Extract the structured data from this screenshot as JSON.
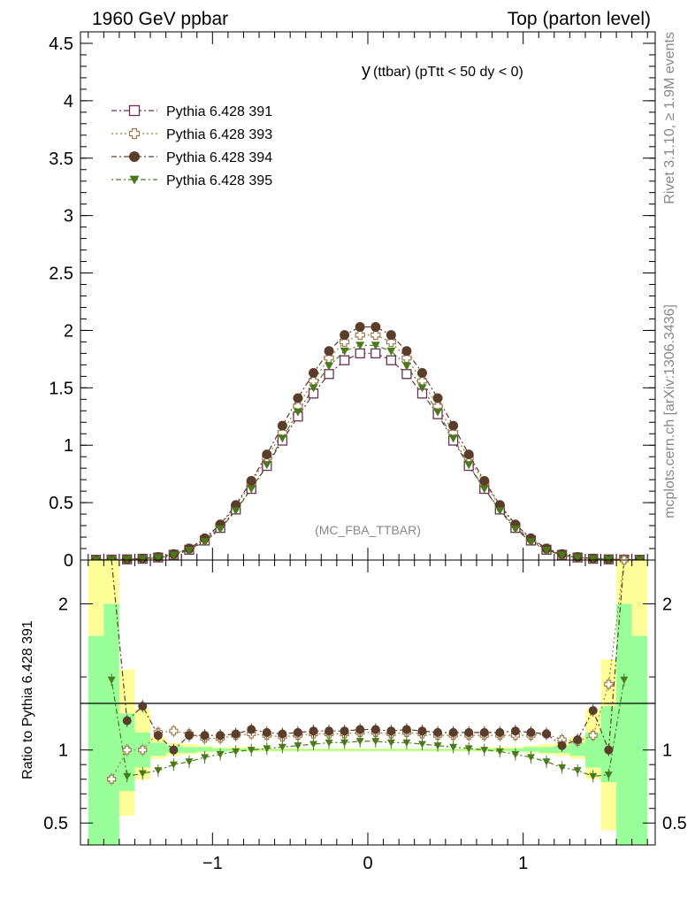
{
  "header": {
    "left": "1960 GeV ppbar",
    "right": "Top (parton level)"
  },
  "side": {
    "rivet": "Rivet 3.1.10, ≥ 1.9M events",
    "mcplots": "mcplots.cern.ch [arXiv:1306.3436]"
  },
  "main": {
    "title_main": "y",
    "title_sub": "(ttbar) (pTtt < 50 dy < 0)",
    "watermark": "(MC_FBA_TTBAR)"
  },
  "ratio": {
    "ylabel": "Ratio to Pythia 6.428 391"
  },
  "chart_data": [
    {
      "type": "line",
      "panel": "main",
      "xlim": [
        -1.85,
        1.85
      ],
      "ylim": [
        0,
        4.6
      ],
      "yticks": [
        0,
        0.5,
        1,
        1.5,
        2,
        2.5,
        3,
        3.5,
        4,
        4.5
      ],
      "ytick_labels": [
        "0",
        "0.5",
        "1",
        "1.5",
        "2",
        "2.5",
        "3",
        "3.5",
        "4",
        "4.5"
      ],
      "x": [
        -1.75,
        -1.65,
        -1.55,
        -1.45,
        -1.35,
        -1.25,
        -1.15,
        -1.05,
        -0.95,
        -0.85,
        -0.75,
        -0.65,
        -0.55,
        -0.45,
        -0.35,
        -0.25,
        -0.15,
        -0.05,
        0.05,
        0.15,
        0.25,
        0.35,
        0.45,
        0.55,
        0.65,
        0.75,
        0.85,
        0.95,
        1.05,
        1.15,
        1.25,
        1.35,
        1.45,
        1.55,
        1.65,
        1.75
      ],
      "series": [
        {
          "name": "Pythia 6.428 391",
          "color": "#6b2f4f",
          "marker": "open-square",
          "values": [
            0.003,
            0.004,
            0.006,
            0.011,
            0.022,
            0.045,
            0.09,
            0.17,
            0.28,
            0.44,
            0.62,
            0.82,
            1.04,
            1.25,
            1.45,
            1.62,
            1.74,
            1.8,
            1.8,
            1.74,
            1.62,
            1.45,
            1.27,
            1.04,
            0.82,
            0.62,
            0.44,
            0.28,
            0.17,
            0.09,
            0.045,
            0.022,
            0.011,
            0.006,
            0.004,
            0.003
          ]
        },
        {
          "name": "Pythia 6.428 393",
          "color": "#a07a4a",
          "marker": "open-cross",
          "values": [
            0.003,
            0.004,
            0.007,
            0.012,
            0.025,
            0.05,
            0.1,
            0.18,
            0.3,
            0.47,
            0.67,
            0.89,
            1.11,
            1.34,
            1.56,
            1.76,
            1.9,
            1.96,
            1.96,
            1.9,
            1.76,
            1.56,
            1.34,
            1.11,
            0.89,
            0.67,
            0.47,
            0.3,
            0.18,
            0.1,
            0.05,
            0.025,
            0.012,
            0.007,
            0.004,
            0.003
          ]
        },
        {
          "name": "Pythia 6.428 394",
          "color": "#5a3d2b",
          "marker": "filled-circle",
          "values": [
            0.003,
            0.004,
            0.007,
            0.013,
            0.026,
            0.052,
            0.1,
            0.19,
            0.31,
            0.48,
            0.69,
            0.92,
            1.17,
            1.41,
            1.63,
            1.82,
            1.96,
            2.03,
            2.03,
            1.96,
            1.82,
            1.63,
            1.41,
            1.17,
            0.92,
            0.69,
            0.48,
            0.31,
            0.19,
            0.1,
            0.052,
            0.026,
            0.013,
            0.007,
            0.004,
            0.003
          ]
        },
        {
          "name": "Pythia 6.428 395",
          "color": "#4a7a1c",
          "marker": "filled-triangle-down",
          "values": [
            0.003,
            0.004,
            0.006,
            0.01,
            0.02,
            0.042,
            0.085,
            0.16,
            0.27,
            0.43,
            0.62,
            0.83,
            1.06,
            1.29,
            1.5,
            1.69,
            1.82,
            1.87,
            1.87,
            1.82,
            1.69,
            1.5,
            1.29,
            1.06,
            0.83,
            0.62,
            0.43,
            0.27,
            0.16,
            0.085,
            0.042,
            0.02,
            0.01,
            0.006,
            0.004,
            0.003
          ]
        }
      ],
      "legend": "top-left"
    },
    {
      "type": "line",
      "panel": "ratio",
      "xlim": [
        -1.85,
        1.85
      ],
      "ylim": [
        0.35,
        2.3
      ],
      "yticks": [
        0.5,
        1,
        2
      ],
      "ytick_labels": [
        "0.5",
        "1",
        "2"
      ],
      "xticks": [
        -1,
        0,
        1
      ],
      "xtick_labels": [
        "−1",
        "0",
        "1"
      ],
      "x": [
        -1.75,
        -1.65,
        -1.55,
        -1.45,
        -1.35,
        -1.25,
        -1.15,
        -1.05,
        -0.95,
        -0.85,
        -0.75,
        -0.65,
        -0.55,
        -0.45,
        -0.35,
        -0.25,
        -0.15,
        -0.05,
        0.05,
        0.15,
        0.25,
        0.35,
        0.45,
        0.55,
        0.65,
        0.75,
        0.85,
        0.95,
        1.05,
        1.15,
        1.25,
        1.35,
        1.45,
        1.55,
        1.65,
        1.75
      ],
      "band_yellow": [
        [
          0.35,
          2.3
        ],
        [
          0.35,
          2.3
        ],
        [
          0.55,
          1.55
        ],
        [
          0.8,
          1.28
        ],
        [
          0.94,
          1.09
        ],
        [
          0.96,
          1.05
        ],
        [
          0.97,
          1.04
        ],
        [
          0.98,
          1.03
        ],
        [
          0.99,
          1.02
        ],
        [
          0.99,
          1.02
        ],
        [
          0.99,
          1.02
        ],
        [
          0.99,
          1.01
        ],
        [
          0.99,
          1.01
        ],
        [
          0.99,
          1.01
        ],
        [
          0.99,
          1.01
        ],
        [
          0.99,
          1.01
        ],
        [
          0.99,
          1.01
        ],
        [
          0.99,
          1.01
        ],
        [
          0.99,
          1.01
        ],
        [
          0.99,
          1.01
        ],
        [
          0.99,
          1.01
        ],
        [
          0.99,
          1.01
        ],
        [
          0.99,
          1.01
        ],
        [
          0.99,
          1.01
        ],
        [
          0.99,
          1.01
        ],
        [
          0.99,
          1.02
        ],
        [
          0.99,
          1.02
        ],
        [
          0.99,
          1.02
        ],
        [
          0.98,
          1.03
        ],
        [
          0.97,
          1.04
        ],
        [
          0.96,
          1.05
        ],
        [
          0.94,
          1.09
        ],
        [
          0.8,
          1.28
        ],
        [
          0.45,
          1.62
        ],
        [
          0.35,
          2.3
        ],
        [
          0.35,
          2.3
        ]
      ],
      "band_green": [
        [
          0.35,
          1.78
        ],
        [
          0.35,
          2.0
        ],
        [
          0.72,
          1.25
        ],
        [
          0.88,
          1.12
        ],
        [
          0.96,
          1.05
        ],
        [
          0.98,
          1.03
        ],
        [
          0.98,
          1.02
        ],
        [
          0.99,
          1.02
        ],
        [
          0.99,
          1.01
        ],
        [
          0.995,
          1.01
        ],
        [
          0.995,
          1.01
        ],
        [
          0.995,
          1.005
        ],
        [
          0.995,
          1.005
        ],
        [
          0.995,
          1.005
        ],
        [
          0.995,
          1.005
        ],
        [
          0.995,
          1.005
        ],
        [
          0.995,
          1.005
        ],
        [
          0.995,
          1.005
        ],
        [
          0.995,
          1.005
        ],
        [
          0.995,
          1.005
        ],
        [
          0.995,
          1.005
        ],
        [
          0.995,
          1.005
        ],
        [
          0.995,
          1.005
        ],
        [
          0.995,
          1.005
        ],
        [
          0.995,
          1.005
        ],
        [
          0.995,
          1.01
        ],
        [
          0.995,
          1.01
        ],
        [
          0.99,
          1.01
        ],
        [
          0.99,
          1.02
        ],
        [
          0.98,
          1.02
        ],
        [
          0.98,
          1.03
        ],
        [
          0.96,
          1.05
        ],
        [
          0.88,
          1.12
        ],
        [
          0.78,
          1.3
        ],
        [
          0.35,
          2.0
        ],
        [
          0.35,
          1.78
        ]
      ],
      "series": [
        {
          "name": "Pythia 6.428 393",
          "color": "#a07a4a",
          "marker": "open-cross",
          "values": [
            null,
            0.8,
            1.0,
            1.0,
            1.12,
            1.13,
            1.11,
            1.08,
            1.08,
            1.1,
            1.11,
            1.1,
            1.09,
            1.1,
            1.11,
            1.11,
            1.11,
            1.12,
            1.12,
            1.11,
            1.12,
            1.11,
            1.1,
            1.1,
            1.1,
            1.1,
            1.1,
            1.1,
            1.1,
            1.11,
            1.07,
            1.06,
            1.1,
            1.45,
            2.3,
            null
          ]
        },
        {
          "name": "Pythia 6.428 394",
          "color": "#5a3d2b",
          "marker": "filled-circle",
          "values": [
            null,
            2.4,
            1.2,
            1.3,
            1.1,
            1.0,
            1.1,
            1.1,
            1.1,
            1.11,
            1.14,
            1.12,
            1.11,
            1.12,
            1.13,
            1.13,
            1.13,
            1.14,
            1.14,
            1.13,
            1.14,
            1.13,
            1.12,
            1.12,
            1.12,
            1.12,
            1.12,
            1.13,
            1.12,
            1.11,
            1.03,
            1.07,
            1.27,
            1.0,
            2.6,
            null
          ]
        },
        {
          "name": "Pythia 6.428 395",
          "color": "#4a7a1c",
          "marker": "filled-triangle-down",
          "values": [
            null,
            1.48,
            0.82,
            0.84,
            0.86,
            0.9,
            0.92,
            0.95,
            0.97,
            0.99,
            1.0,
            1.01,
            1.02,
            1.03,
            1.04,
            1.05,
            1.05,
            1.06,
            1.06,
            1.05,
            1.05,
            1.04,
            1.03,
            1.02,
            1.01,
            1.0,
            0.99,
            0.97,
            0.95,
            0.92,
            0.88,
            0.86,
            0.82,
            0.83,
            1.48,
            null
          ]
        }
      ]
    }
  ]
}
